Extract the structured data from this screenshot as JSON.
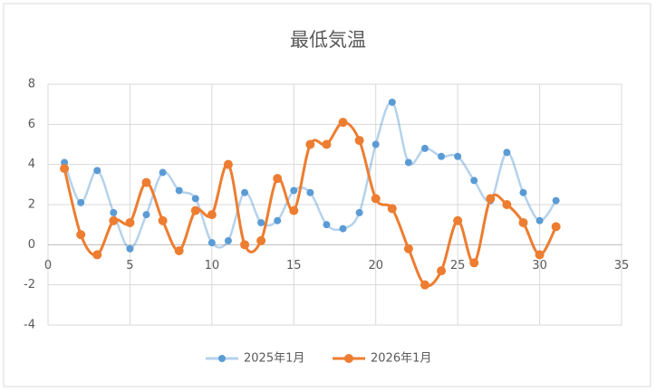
{
  "chart_data": {
    "type": "scatter",
    "title": "最低気温",
    "x": [
      1,
      2,
      3,
      4,
      5,
      6,
      7,
      8,
      9,
      10,
      11,
      12,
      13,
      14,
      15,
      16,
      17,
      18,
      19,
      20,
      21,
      22,
      23,
      24,
      25,
      26,
      27,
      28,
      29,
      30,
      31
    ],
    "series": [
      {
        "name": "2025年1月",
        "color": "#5b9bd5",
        "values": [
          4.1,
          2.1,
          3.7,
          1.6,
          -0.2,
          1.5,
          3.6,
          2.7,
          2.3,
          0.1,
          0.2,
          2.6,
          1.1,
          1.2,
          2.7,
          2.6,
          1.0,
          0.8,
          1.6,
          5.0,
          7.1,
          4.1,
          4.8,
          4.4,
          4.4,
          3.2,
          2.2,
          4.6,
          2.6,
          1.2,
          2.2
        ]
      },
      {
        "name": "2026年1月",
        "color": "#ed7d31",
        "values": [
          3.8,
          0.5,
          -0.5,
          1.2,
          1.1,
          3.1,
          1.2,
          -0.3,
          1.7,
          1.5,
          4.0,
          0.0,
          0.2,
          3.3,
          1.7,
          5.0,
          5.0,
          6.1,
          5.2,
          2.3,
          1.8,
          -0.2,
          -2.0,
          -1.3,
          1.2,
          -0.9,
          2.3,
          2.0,
          1.1,
          -0.5,
          0.9
        ]
      }
    ],
    "xlim": [
      0,
      35
    ],
    "xticks": [
      0,
      5,
      10,
      15,
      20,
      25,
      30,
      35
    ],
    "ylim": [
      -4,
      8
    ],
    "yticks": [
      -4,
      -2,
      0,
      2,
      4,
      6,
      8
    ],
    "grid": true,
    "smooth": true,
    "legend": "bottom"
  }
}
